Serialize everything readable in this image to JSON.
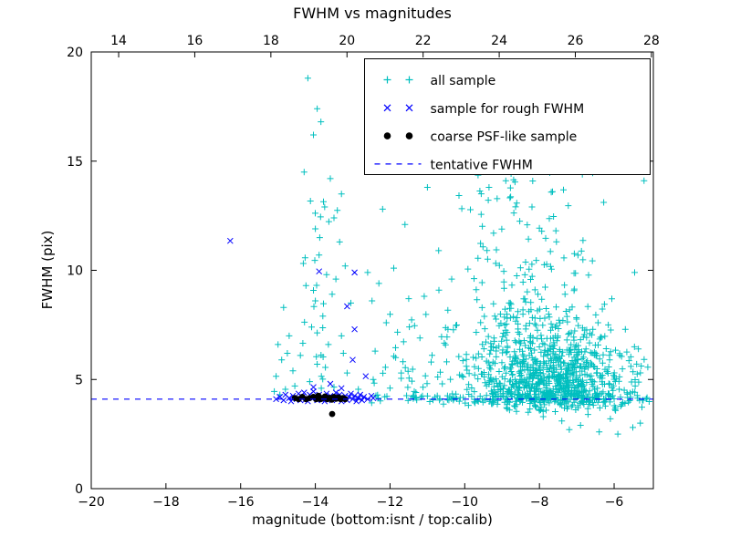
{
  "chart_data": {
    "type": "scatter",
    "title": "FWHM vs magnitudes",
    "xlabel": "magnitude (bottom:isnt / top:calib)",
    "ylabel": "FWHM (pix)",
    "xlim": [
      -20,
      -4.95
    ],
    "ylim": [
      0,
      20
    ],
    "x_top_lim": [
      13.28,
      28.05
    ],
    "x_ticks": [
      -20,
      -18,
      -16,
      -14,
      -12,
      -10,
      -8,
      -6
    ],
    "x_top_ticks": [
      14,
      16,
      18,
      20,
      22,
      24,
      26,
      28
    ],
    "y_ticks": [
      0,
      5,
      10,
      15,
      20
    ],
    "grid": false,
    "legend_position": "upper right",
    "background": "#ffffff",
    "seed": 1234567,
    "tentative_fwhm": 4.1,
    "series": [
      {
        "name": "all sample",
        "marker": "plus",
        "color": "#00bfbf",
        "points": [
          [
            -14.2,
            18.8
          ],
          [
            -13.95,
            17.4
          ],
          [
            -13.85,
            16.8
          ],
          [
            -14.05,
            16.2
          ],
          [
            -14.3,
            14.5
          ],
          [
            -13.6,
            14.2
          ],
          [
            -13.3,
            13.5
          ],
          [
            -13.75,
            12.9
          ],
          [
            -13.5,
            12.4
          ],
          [
            -14.0,
            11.9
          ],
          [
            -13.35,
            11.3
          ],
          [
            -13.9,
            10.7
          ],
          [
            -13.2,
            10.2
          ],
          [
            -13.7,
            9.8
          ],
          [
            -14.25,
            9.3
          ],
          [
            -13.55,
            8.9
          ],
          [
            -13.05,
            8.5
          ],
          [
            -13.8,
            7.9
          ],
          [
            -14.1,
            7.4
          ],
          [
            -13.3,
            7.0
          ],
          [
            -13.65,
            6.6
          ],
          [
            -14.4,
            6.1
          ],
          [
            -13.95,
            5.7
          ],
          [
            -13.15,
            5.3
          ],
          [
            -14.15,
            4.9
          ],
          [
            -13.5,
            4.65
          ],
          [
            -12.85,
            4.55
          ],
          [
            -13.25,
            6.2
          ],
          [
            -14.0,
            8.6
          ],
          [
            -13.45,
            9.6
          ],
          [
            -14.85,
            8.3
          ],
          [
            -15.0,
            6.6
          ],
          [
            -14.9,
            5.9
          ],
          [
            -15.05,
            5.15
          ],
          [
            -14.7,
            7.0
          ],
          [
            -14.75,
            6.2
          ],
          [
            -14.6,
            5.4
          ],
          [
            -15.1,
            4.45
          ],
          [
            -14.95,
            4.3
          ],
          [
            -14.8,
            4.55
          ],
          [
            -14.55,
            4.7
          ],
          [
            -12.6,
            9.9
          ],
          [
            -12.3,
            9.4
          ],
          [
            -11.9,
            10.1
          ],
          [
            -11.5,
            8.7
          ],
          [
            -12.1,
            7.6
          ],
          [
            -11.2,
            6.9
          ],
          [
            -12.4,
            6.3
          ],
          [
            -10.9,
            5.8
          ],
          [
            -11.7,
            5.3
          ],
          [
            -10.6,
            4.8
          ],
          [
            -12.0,
            4.6
          ],
          [
            -11.35,
            4.45
          ],
          [
            -10.45,
            7.3
          ],
          [
            -11.0,
            13.8
          ],
          [
            -12.2,
            12.8
          ],
          [
            -11.6,
            12.1
          ],
          [
            -10.35,
            9.6
          ],
          [
            -12.45,
            5.0
          ],
          [
            -11.85,
            6.0
          ],
          [
            -10.7,
            10.9
          ],
          [
            -8.9,
            14.1
          ],
          [
            -9.35,
            13.8
          ],
          [
            -7.65,
            13.6
          ],
          [
            -8.2,
            12.9
          ],
          [
            -5.2,
            14.1
          ],
          [
            -5.45,
            9.9
          ],
          [
            -5.7,
            7.3
          ],
          [
            -5.35,
            6.4
          ],
          [
            -5.55,
            5.6
          ],
          [
            -7.9,
            3.3
          ],
          [
            -7.4,
            3.1
          ],
          [
            -6.9,
            2.9
          ],
          [
            -6.4,
            2.6
          ],
          [
            -5.9,
            2.5
          ],
          [
            -5.5,
            2.8
          ],
          [
            -6.1,
            3.2
          ],
          [
            -6.7,
            3.4
          ],
          [
            -7.2,
            2.7
          ],
          [
            -5.3,
            3.0
          ],
          [
            -8.3,
            3.5
          ],
          [
            -8.8,
            3.6
          ]
        ],
        "clusters": [
          {
            "n": 120,
            "x": {
              "dist": "uniform",
              "min": -12.5,
              "max": -5.05
            },
            "y": {
              "dist": "normal",
              "mu": 4.15,
              "sigma": 0.13,
              "min": 3.75,
              "max": 4.55
            }
          },
          {
            "n": 600,
            "x": {
              "dist": "normal",
              "mu": -7.6,
              "sigma": 1.0,
              "min": -10.8,
              "max": -5.05
            },
            "y": {
              "dist": "halfnormal",
              "base": 3.95,
              "sigma": 1.5,
              "min": 3.55,
              "max": 15.5
            }
          },
          {
            "n": 300,
            "x": {
              "dist": "normal",
              "mu": -8.3,
              "sigma": 1.2,
              "min": -11.5,
              "max": -5.05
            },
            "y": {
              "dist": "halfnormal",
              "base": 4.2,
              "sigma": 2.8,
              "min": 3.6,
              "max": 15.8
            }
          },
          {
            "n": 70,
            "x": {
              "dist": "normal",
              "mu": -8.3,
              "sigma": 1.15,
              "min": -10.9,
              "max": -5.4
            },
            "y": {
              "dist": "uniform",
              "min": 9.0,
              "max": 15.4
            }
          },
          {
            "n": 30,
            "x": {
              "dist": "uniform",
              "min": -12.5,
              "max": -10.3
            },
            "y": {
              "dist": "halfnormal",
              "base": 4.2,
              "sigma": 1.8,
              "min": 4.0,
              "max": 10.5
            }
          },
          {
            "n": 60,
            "x": {
              "dist": "normal",
              "mu": -7.3,
              "sigma": 1.1,
              "min": -10.5,
              "max": -5.1
            },
            "y": {
              "dist": "uniform",
              "min": 3.5,
              "max": 4.1
            }
          },
          {
            "n": 25,
            "x": {
              "dist": "normal",
              "mu": -13.9,
              "sigma": 0.25,
              "min": -14.5,
              "max": -13.3
            },
            "y": {
              "dist": "uniform",
              "min": 4.5,
              "max": 13.5
            }
          }
        ]
      },
      {
        "name": "sample for rough FWHM",
        "marker": "x",
        "color": "#0000ff",
        "points": [
          [
            -15.05,
            4.1
          ],
          [
            -14.95,
            4.2
          ],
          [
            -14.85,
            4.05
          ],
          [
            -14.8,
            4.3
          ],
          [
            -14.7,
            4.15
          ],
          [
            -14.65,
            4.0
          ],
          [
            -14.6,
            4.25
          ],
          [
            -14.5,
            4.1
          ],
          [
            -14.45,
            4.35
          ],
          [
            -14.4,
            4.05
          ],
          [
            -14.35,
            4.2
          ],
          [
            -14.3,
            4.4
          ],
          [
            -14.25,
            4.1
          ],
          [
            -14.2,
            4.0
          ],
          [
            -14.15,
            4.3
          ],
          [
            -14.1,
            4.15
          ],
          [
            -14.05,
            4.45
          ],
          [
            -14.0,
            4.2
          ],
          [
            -13.95,
            4.05
          ],
          [
            -13.9,
            4.3
          ],
          [
            -13.85,
            4.1
          ],
          [
            -13.8,
            4.2
          ],
          [
            -13.75,
            4.0
          ],
          [
            -13.7,
            4.35
          ],
          [
            -13.65,
            4.15
          ],
          [
            -13.6,
            4.25
          ],
          [
            -13.55,
            4.05
          ],
          [
            -13.5,
            4.2
          ],
          [
            -13.45,
            4.4
          ],
          [
            -13.4,
            4.1
          ],
          [
            -13.35,
            4.3
          ],
          [
            -13.3,
            4.0
          ],
          [
            -13.25,
            4.15
          ],
          [
            -13.2,
            4.25
          ],
          [
            -13.15,
            4.05
          ],
          [
            -13.1,
            4.2
          ],
          [
            -13.05,
            4.35
          ],
          [
            -13.0,
            4.1
          ],
          [
            -12.95,
            4.25
          ],
          [
            -12.9,
            4.0
          ],
          [
            -12.85,
            4.15
          ],
          [
            -12.8,
            4.3
          ],
          [
            -12.75,
            4.05
          ],
          [
            -12.7,
            4.2
          ],
          [
            -12.6,
            4.1
          ],
          [
            -12.5,
            4.25
          ],
          [
            -12.45,
            4.15
          ],
          [
            -14.05,
            4.65
          ],
          [
            -13.3,
            4.6
          ],
          [
            -13.6,
            4.8
          ],
          [
            -12.65,
            5.15
          ],
          [
            -13.0,
            5.9
          ],
          [
            -12.95,
            7.3
          ],
          [
            -13.15,
            8.35
          ],
          [
            -12.95,
            9.9
          ],
          [
            -13.9,
            9.95
          ],
          [
            -16.28,
            11.35
          ]
        ]
      },
      {
        "name": "coarse PSF-like sample",
        "marker": "circle",
        "color": "#000000",
        "points": [
          [
            -14.55,
            4.15
          ],
          [
            -14.45,
            4.1
          ],
          [
            -14.35,
            4.2
          ],
          [
            -14.25,
            4.1
          ],
          [
            -14.15,
            4.15
          ],
          [
            -14.05,
            4.2
          ],
          [
            -13.98,
            4.1
          ],
          [
            -13.92,
            4.25
          ],
          [
            -13.86,
            4.1
          ],
          [
            -13.8,
            4.15
          ],
          [
            -13.74,
            4.22
          ],
          [
            -13.68,
            4.1
          ],
          [
            -13.62,
            4.16
          ],
          [
            -13.56,
            4.08
          ],
          [
            -13.5,
            4.2
          ],
          [
            -13.44,
            4.12
          ],
          [
            -13.38,
            4.18
          ],
          [
            -13.32,
            4.1
          ],
          [
            -13.26,
            4.15
          ],
          [
            -13.2,
            4.1
          ],
          [
            -13.55,
            3.42
          ]
        ]
      },
      {
        "name": "tentative FWHM",
        "type": "hline",
        "linestyle": "dashed",
        "color": "#0000ff",
        "y": 4.1
      }
    ]
  }
}
